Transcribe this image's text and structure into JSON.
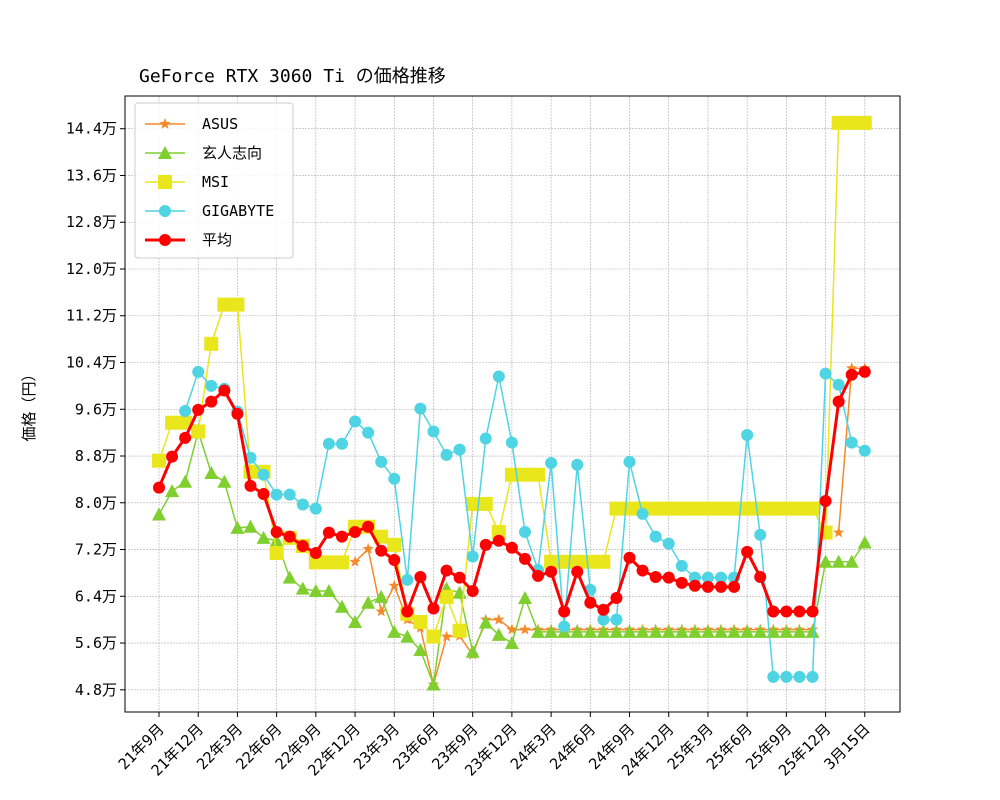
{
  "chart_data": {
    "type": "line",
    "title": "GeForce RTX 3060 Ti の価格推移",
    "xlabel": "",
    "ylabel": "価格（円）",
    "grid": true,
    "legend_position": "top-left",
    "y_ticks": [
      "4.8万",
      "5.6万",
      "6.4万",
      "7.2万",
      "8.0万",
      "8.8万",
      "9.6万",
      "10.4万",
      "11.2万",
      "12.0万",
      "12.8万",
      "13.6万",
      "14.4万"
    ],
    "y_tick_values": [
      4.8,
      5.6,
      6.4,
      7.2,
      8.0,
      8.8,
      9.6,
      10.4,
      11.2,
      12.0,
      12.8,
      13.6,
      14.4
    ],
    "y_unit": "万円",
    "ylim": [
      4.42,
      14.96
    ],
    "x_ticks": [
      "21年9月",
      "21年12月",
      "22年3月",
      "22年6月",
      "22年9月",
      "22年12月",
      "23年3月",
      "23年6月",
      "23年9月",
      "23年12月",
      "24年3月",
      "24年6月",
      "24年9月",
      "24年12月",
      "25年3月",
      "25年6月",
      "25年9月",
      "25年12月",
      "3月15日"
    ],
    "x": [
      "21年9月",
      "21年10月",
      "21年11月",
      "21年12月",
      "22年1月",
      "22年2月",
      "22年3月",
      "22年4月",
      "22年5月",
      "22年6月",
      "22年7月",
      "22年8月",
      "22年9月",
      "22年10月",
      "22年11月",
      "22年12月",
      "23年1月",
      "23年2月",
      "23年3月",
      "23年4月",
      "23年5月",
      "23年6月",
      "23年7月",
      "23年8月",
      "23年9月",
      "23年10月",
      "23年11月",
      "23年12月",
      "24年1月",
      "24年2月",
      "24年3月",
      "24年4月",
      "24年5月",
      "24年6月",
      "24年7月",
      "24年8月",
      "24年9月",
      "24年10月",
      "24年11月",
      "24年12月",
      "25年1月",
      "25年2月",
      "25年3月",
      "25年4月",
      "25年5月",
      "25年6月",
      "25年7月",
      "25年8月",
      "25年9月",
      "25年10月",
      "25年11月",
      "25年12月",
      "26年1月",
      "26年2月",
      "3月15日"
    ],
    "series": [
      {
        "name": "ASUS",
        "color": "#f5892a",
        "marker": "star",
        "values": [
          null,
          null,
          null,
          null,
          null,
          null,
          null,
          null,
          null,
          null,
          null,
          null,
          null,
          null,
          null,
          6.99,
          7.21,
          6.14,
          6.58,
          6.0,
          5.86,
          4.89,
          5.71,
          5.72,
          5.4,
          6.0,
          6.0,
          5.83,
          5.83,
          5.83,
          5.83,
          5.83,
          5.83,
          5.83,
          5.83,
          5.83,
          5.83,
          5.83,
          5.83,
          5.83,
          5.83,
          5.83,
          5.83,
          5.83,
          5.83,
          5.83,
          5.83,
          5.83,
          5.83,
          5.83,
          5.83,
          null,
          7.49,
          10.3,
          10.3
        ]
      },
      {
        "name": "玄人志向",
        "color": "#7fcf2f",
        "marker": "triangle",
        "values": [
          7.8,
          8.2,
          8.36,
          9.22,
          8.51,
          8.36,
          7.57,
          7.59,
          7.4,
          7.35,
          6.72,
          6.53,
          6.49,
          6.49,
          6.22,
          5.96,
          6.29,
          6.39,
          5.79,
          5.71,
          5.48,
          4.89,
          6.53,
          6.46,
          5.45,
          5.95,
          5.74,
          5.6,
          6.37,
          5.79,
          5.79,
          5.79,
          5.79,
          5.79,
          5.79,
          5.79,
          5.79,
          5.79,
          5.79,
          5.79,
          5.79,
          5.79,
          5.79,
          5.79,
          5.79,
          5.79,
          5.79,
          5.79,
          5.79,
          5.79,
          5.79,
          6.99,
          6.99,
          6.99,
          7.32
        ]
      },
      {
        "name": "MSI",
        "color": "#eae61c",
        "marker": "square",
        "values": [
          8.72,
          9.37,
          9.37,
          9.22,
          10.72,
          11.39,
          11.39,
          8.53,
          8.53,
          7.14,
          7.4,
          7.26,
          6.98,
          6.98,
          6.98,
          7.59,
          7.59,
          7.42,
          7.28,
          6.1,
          5.96,
          5.71,
          6.39,
          5.81,
          7.98,
          7.98,
          7.5,
          8.48,
          8.48,
          8.48,
          6.99,
          6.99,
          6.99,
          6.99,
          6.99,
          7.9,
          7.9,
          7.9,
          7.9,
          7.9,
          7.9,
          7.9,
          7.9,
          7.9,
          7.9,
          7.9,
          7.9,
          7.9,
          7.9,
          7.9,
          7.9,
          7.49,
          14.5,
          14.5,
          14.5
        ]
      },
      {
        "name": "GIGABYTE",
        "color": "#4fd4e4",
        "marker": "circle",
        "values": [
          null,
          null,
          9.57,
          10.24,
          10.0,
          9.95,
          9.56,
          8.77,
          8.48,
          8.14,
          8.14,
          7.97,
          7.9,
          9.01,
          9.01,
          9.39,
          9.2,
          8.7,
          8.41,
          6.68,
          9.61,
          9.22,
          8.82,
          8.91,
          7.08,
          9.1,
          10.16,
          9.03,
          7.5,
          6.85,
          8.68,
          5.88,
          8.65,
          6.51,
          6.0,
          6.0,
          8.7,
          7.81,
          7.42,
          7.3,
          6.92,
          6.72,
          6.72,
          6.72,
          6.72,
          9.16,
          7.45,
          5.02,
          5.02,
          5.02,
          5.02,
          10.21,
          10.02,
          9.03,
          8.89
        ]
      },
      {
        "name": "平均",
        "color": "#ff0000",
        "marker": "circle",
        "values": [
          8.26,
          8.79,
          9.11,
          9.59,
          9.73,
          9.92,
          9.52,
          8.29,
          8.15,
          7.5,
          7.42,
          7.26,
          7.14,
          7.49,
          7.42,
          7.5,
          7.59,
          7.18,
          7.02,
          6.14,
          6.73,
          6.19,
          6.84,
          6.72,
          6.49,
          7.28,
          7.35,
          7.23,
          7.04,
          6.75,
          6.82,
          6.14,
          6.82,
          6.29,
          6.17,
          6.37,
          7.06,
          6.84,
          6.73,
          6.72,
          6.63,
          6.58,
          6.56,
          6.56,
          6.56,
          7.16,
          6.73,
          6.14,
          6.14,
          6.14,
          6.14,
          8.03,
          9.73,
          10.19,
          10.24
        ]
      }
    ]
  }
}
